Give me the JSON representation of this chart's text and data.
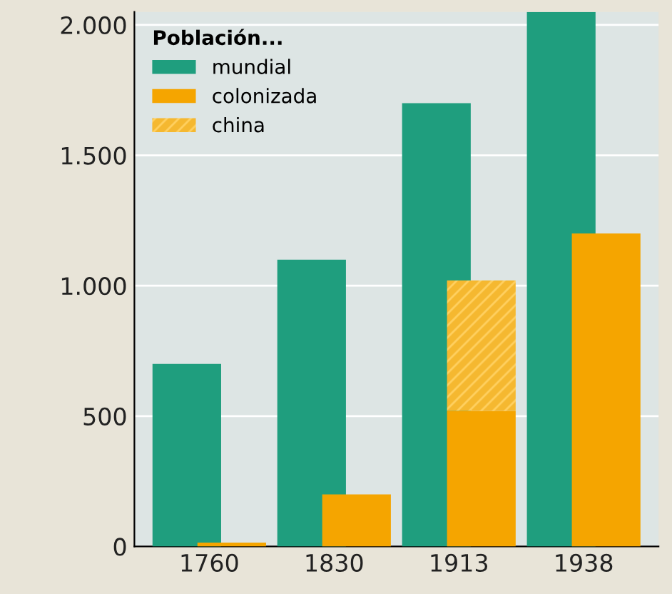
{
  "chart_data": {
    "type": "bar",
    "legend_title": "Población...",
    "legend": "top left",
    "grid": "y",
    "categories": [
      "1760",
      "1830",
      "1913",
      "1938"
    ],
    "series": [
      {
        "name": "mundial",
        "color": "#1f9e7e",
        "values": [
          700,
          1100,
          1700,
          2050
        ]
      },
      {
        "name": "colonizada",
        "color": "#f5a500",
        "values": [
          15,
          200,
          520,
          1200
        ]
      },
      {
        "name": "china",
        "color": "#f5b830",
        "base": [
          null,
          null,
          520,
          null
        ],
        "values": [
          null,
          null,
          500,
          null
        ]
      }
    ],
    "ylim": [
      0,
      2050
    ],
    "yticks": [
      {
        "value": 0,
        "label": "0"
      },
      {
        "value": 500,
        "label": "500"
      },
      {
        "value": 1000,
        "label": "1.000"
      },
      {
        "value": 1500,
        "label": "1.500"
      },
      {
        "value": 2000,
        "label": "2.000"
      }
    ]
  }
}
